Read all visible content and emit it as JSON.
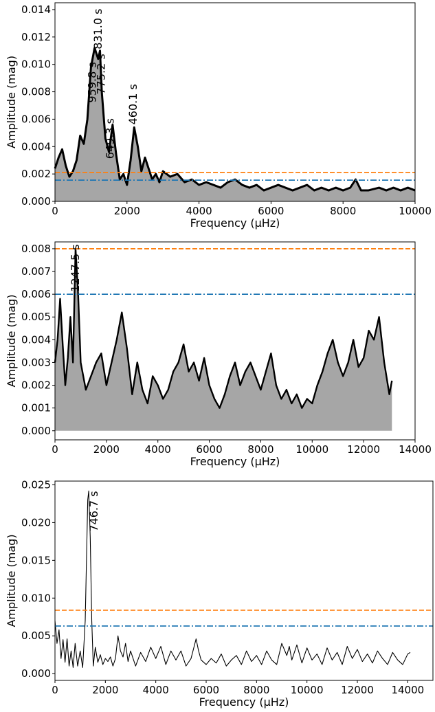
{
  "chart_data": [
    {
      "type": "line",
      "xlabel": "Frequency (μHz)",
      "ylabel": "Amplitude (mag)",
      "xlim": [
        0,
        10000
      ],
      "ylim": [
        0,
        0.0145
      ],
      "xticks": [
        "0",
        "2000",
        "4000",
        "6000",
        "8000",
        "10000"
      ],
      "yticks": [
        "0.000",
        "0.002",
        "0.004",
        "0.006",
        "0.008",
        "0.010",
        "0.012",
        "0.014"
      ],
      "style": "filled-black",
      "series": [
        {
          "role": "amplitude spectrum",
          "x": [
            0,
            100,
            200,
            300,
            400,
            500,
            600,
            700,
            800,
            900,
            1000,
            1100,
            1200,
            1250,
            1300,
            1400,
            1500,
            1600,
            1700,
            1800,
            1900,
            2000,
            2100,
            2200,
            2300,
            2400,
            2500,
            2600,
            2700,
            2800,
            2900,
            3000,
            3200,
            3400,
            3600,
            3800,
            4000,
            4200,
            4400,
            4600,
            4800,
            5000,
            5200,
            5400,
            5600,
            5800,
            6000,
            6200,
            6400,
            6600,
            6800,
            7000,
            7200,
            7400,
            7600,
            7800,
            8000,
            8200,
            8350,
            8500,
            8700,
            9000,
            9200,
            9400,
            9600,
            9800,
            10000
          ],
          "y": [
            0.0024,
            0.0032,
            0.0038,
            0.0026,
            0.0018,
            0.0022,
            0.003,
            0.0048,
            0.0042,
            0.006,
            0.0098,
            0.0112,
            0.0104,
            0.011,
            0.008,
            0.0046,
            0.0036,
            0.0056,
            0.0034,
            0.0016,
            0.002,
            0.0012,
            0.003,
            0.0054,
            0.004,
            0.0022,
            0.0032,
            0.0024,
            0.0016,
            0.002,
            0.0014,
            0.0022,
            0.0018,
            0.002,
            0.0014,
            0.0016,
            0.0012,
            0.0014,
            0.0012,
            0.001,
            0.0014,
            0.0016,
            0.0012,
            0.001,
            0.0012,
            0.0008,
            0.001,
            0.0012,
            0.001,
            0.0008,
            0.001,
            0.0012,
            0.0008,
            0.001,
            0.0008,
            0.001,
            0.0008,
            0.001,
            0.0016,
            0.0008,
            0.0008,
            0.001,
            0.0008,
            0.001,
            0.0008,
            0.001,
            0.0008
          ]
        }
      ],
      "hlines": [
        {
          "y": 0.0021,
          "color": "#ff7f0e",
          "style": "dashed"
        },
        {
          "y": 0.00155,
          "color": "#1f77b4",
          "style": "dashdot"
        }
      ],
      "annotations": [
        {
          "text": "959.8 s",
          "x": 1042,
          "y": 0.0072
        },
        {
          "text": "831.0 s",
          "x": 1203,
          "y": 0.0111
        },
        {
          "text": "775.2 s",
          "x": 1290,
          "y": 0.0078
        },
        {
          "text": "649.3 s",
          "x": 1540,
          "y": 0.0031
        },
        {
          "text": "460.1 s",
          "x": 2173,
          "y": 0.0056
        }
      ]
    },
    {
      "type": "line",
      "xlabel": "Frequency (μHz)",
      "ylabel": "Amplitude (mag)",
      "xlim": [
        0,
        14000
      ],
      "ylim": [
        -0.0004,
        0.0083
      ],
      "xticks": [
        "0",
        "2000",
        "4000",
        "6000",
        "8000",
        "10000",
        "12000",
        "14000"
      ],
      "yticks": [
        "0.000",
        "0.001",
        "0.002",
        "0.003",
        "0.004",
        "0.005",
        "0.006",
        "0.007",
        "0.008"
      ],
      "style": "filled-black",
      "series": [
        {
          "role": "amplitude spectrum",
          "x": [
            0,
            100,
            200,
            300,
            400,
            500,
            600,
            700,
            800,
            900,
            1000,
            1200,
            1400,
            1600,
            1800,
            2000,
            2200,
            2400,
            2600,
            2800,
            3000,
            3200,
            3400,
            3600,
            3800,
            4000,
            4200,
            4400,
            4600,
            4800,
            5000,
            5200,
            5400,
            5600,
            5800,
            6000,
            6200,
            6400,
            6600,
            6800,
            7000,
            7200,
            7400,
            7600,
            7800,
            8000,
            8200,
            8400,
            8600,
            8800,
            9000,
            9200,
            9400,
            9600,
            9800,
            10000,
            10200,
            10400,
            10600,
            10800,
            11000,
            11200,
            11400,
            11600,
            11800,
            12000,
            12200,
            12400,
            12600,
            12800,
            13000,
            13100
          ],
          "y": [
            0.003,
            0.004,
            0.0058,
            0.0038,
            0.002,
            0.0032,
            0.005,
            0.003,
            0.008,
            0.006,
            0.003,
            0.0018,
            0.0024,
            0.003,
            0.0034,
            0.002,
            0.003,
            0.004,
            0.0052,
            0.0036,
            0.0016,
            0.003,
            0.0018,
            0.0012,
            0.0024,
            0.002,
            0.0014,
            0.0018,
            0.0026,
            0.003,
            0.0038,
            0.0026,
            0.003,
            0.0022,
            0.0032,
            0.002,
            0.0014,
            0.001,
            0.0016,
            0.0024,
            0.003,
            0.002,
            0.0026,
            0.003,
            0.0024,
            0.0018,
            0.0026,
            0.0034,
            0.002,
            0.0014,
            0.0018,
            0.0012,
            0.0016,
            0.001,
            0.0014,
            0.0012,
            0.002,
            0.0026,
            0.0034,
            0.004,
            0.003,
            0.0024,
            0.003,
            0.004,
            0.0028,
            0.0032,
            0.0044,
            0.004,
            0.005,
            0.003,
            0.0016,
            0.0022
          ]
        }
      ],
      "hlines": [
        {
          "y": 0.008,
          "color": "#ff7f0e",
          "style": "dashed"
        },
        {
          "y": 0.006,
          "color": "#1f77b4",
          "style": "dashdot"
        }
      ],
      "annotations": [
        {
          "text": "1247.5 s",
          "x": 800,
          "y": 0.0061
        }
      ]
    },
    {
      "type": "line",
      "xlabel": "Frequency (μHz)",
      "ylabel": "Amplitude (mag)",
      "xlim": [
        0,
        15000
      ],
      "ylim": [
        -0.0009,
        0.0255
      ],
      "xticks": [
        "0",
        "2000",
        "4000",
        "6000",
        "8000",
        "10000",
        "12000",
        "14000"
      ],
      "yticks": [
        "0.000",
        "0.005",
        "0.010",
        "0.015",
        "0.020",
        "0.025"
      ],
      "style": "thin-line",
      "series": [
        {
          "role": "amplitude spectrum",
          "x": [
            0,
            80,
            160,
            240,
            320,
            400,
            480,
            560,
            640,
            720,
            800,
            900,
            1000,
            1100,
            1200,
            1250,
            1300,
            1340,
            1400,
            1460,
            1520,
            1600,
            1700,
            1800,
            1900,
            2000,
            2100,
            2200,
            2300,
            2400,
            2500,
            2600,
            2700,
            2800,
            2900,
            3000,
            3200,
            3400,
            3600,
            3800,
            4000,
            4200,
            4400,
            4600,
            4800,
            5000,
            5200,
            5400,
            5600,
            5700,
            5800,
            6000,
            6200,
            6400,
            6600,
            6800,
            7000,
            7200,
            7400,
            7600,
            7800,
            8000,
            8200,
            8400,
            8600,
            8800,
            9000,
            9200,
            9300,
            9400,
            9600,
            9800,
            10000,
            10200,
            10400,
            10600,
            10800,
            11000,
            11200,
            11400,
            11600,
            11800,
            12000,
            12200,
            12400,
            12600,
            12800,
            13000,
            13200,
            13400,
            13600,
            13800,
            14000,
            14100
          ],
          "y": [
            0.007,
            0.004,
            0.0058,
            0.002,
            0.0045,
            0.0015,
            0.0046,
            0.001,
            0.003,
            0.0008,
            0.004,
            0.001,
            0.003,
            0.0008,
            0.007,
            0.015,
            0.023,
            0.0242,
            0.018,
            0.007,
            0.001,
            0.0035,
            0.0015,
            0.0025,
            0.0012,
            0.002,
            0.0016,
            0.0022,
            0.001,
            0.002,
            0.005,
            0.003,
            0.0022,
            0.004,
            0.0016,
            0.003,
            0.001,
            0.0028,
            0.0016,
            0.0035,
            0.002,
            0.0036,
            0.0012,
            0.003,
            0.0018,
            0.003,
            0.001,
            0.002,
            0.0046,
            0.003,
            0.0018,
            0.0012,
            0.002,
            0.0014,
            0.0026,
            0.001,
            0.0018,
            0.0024,
            0.0012,
            0.003,
            0.0016,
            0.0024,
            0.0012,
            0.003,
            0.0018,
            0.0012,
            0.004,
            0.0024,
            0.0036,
            0.0018,
            0.0038,
            0.0014,
            0.0034,
            0.0018,
            0.0026,
            0.0012,
            0.0034,
            0.0018,
            0.0028,
            0.0012,
            0.0036,
            0.002,
            0.0032,
            0.0016,
            0.0026,
            0.0014,
            0.003,
            0.002,
            0.0012,
            0.0028,
            0.0018,
            0.0012,
            0.0026,
            0.0028
          ]
        }
      ],
      "hlines": [
        {
          "y": 0.0084,
          "color": "#ff7f0e",
          "style": "dashed"
        },
        {
          "y": 0.0063,
          "color": "#1f77b4",
          "style": "dashdot"
        }
      ],
      "annotations": [
        {
          "text": "746.7 s",
          "x": 1550,
          "y": 0.0188
        }
      ]
    }
  ]
}
